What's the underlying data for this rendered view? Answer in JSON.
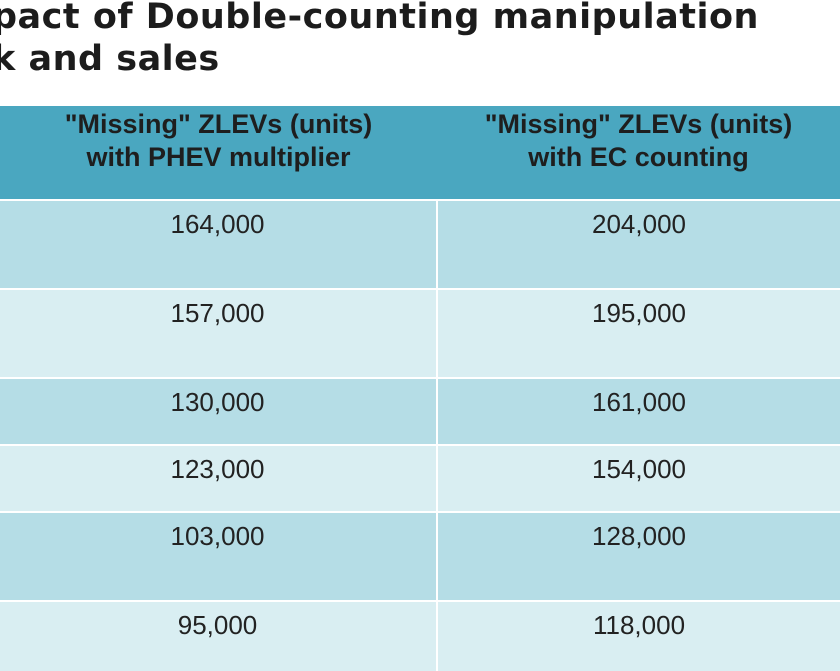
{
  "title": {
    "line1": "pact of Double-counting manipulation",
    "line2": "k and sales"
  },
  "table": {
    "headers": [
      {
        "line1": "\"Missing\" ZLEVs (units)",
        "line2": "with PHEV multiplier"
      },
      {
        "line1": "\"Missing\" ZLEVs (units)",
        "line2": "with EC counting"
      }
    ],
    "rows": [
      [
        "164,000",
        "204,000"
      ],
      [
        "157,000",
        "195,000"
      ],
      [
        "130,000",
        "161,000"
      ],
      [
        "123,000",
        "154,000"
      ],
      [
        "103,000",
        "128,000"
      ],
      [
        "95,000",
        "118,000"
      ]
    ]
  },
  "colors": {
    "header_bg": "#4aa7c0",
    "row_dark": "#b5dde6",
    "row_light": "#d9eef2"
  }
}
